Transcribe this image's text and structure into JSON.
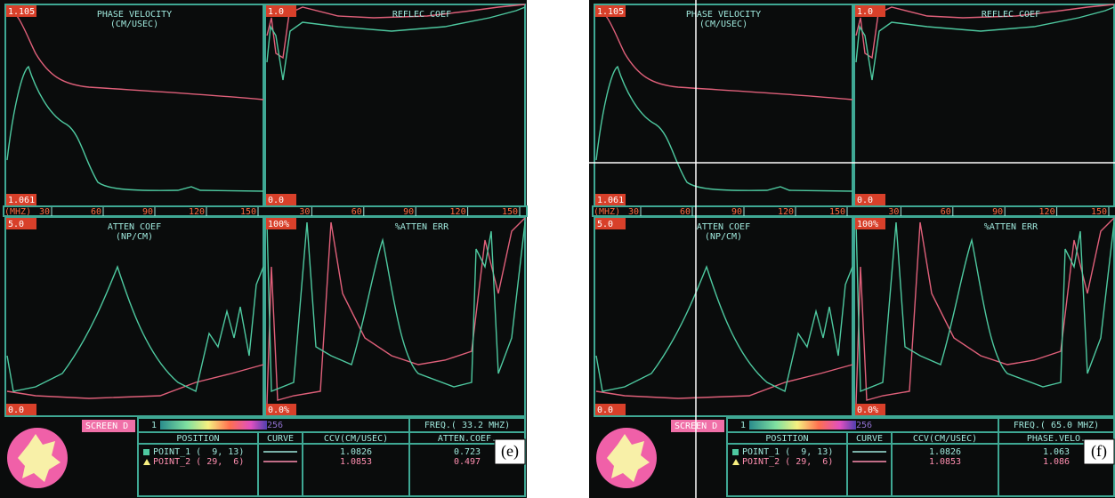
{
  "panels": [
    {
      "label": "(e)",
      "plots": [
        {
          "title": "PHASE VELOCITY",
          "unit": "(CM/USEC)",
          "max": "1.105",
          "min": "1.061"
        },
        {
          "title": "REFLEC COEF",
          "max": "1.0",
          "min": "0.0"
        },
        {
          "title": "ATTEN COEF",
          "unit": "(NP/CM)",
          "max": "5.0",
          "min": "0.0"
        },
        {
          "title": "%ATTEN ERR",
          "max": "100%",
          "min": "0.0%"
        }
      ],
      "x_unit": "(MHZ)",
      "x_ticks": [
        "30",
        "60",
        "90",
        "120",
        "150"
      ],
      "screen": "SCREEN D",
      "scale_min": "1",
      "scale_max": "256",
      "freq": "FREQ.( 33.2 MHZ)",
      "table": {
        "headers": [
          "POSITION",
          "CURVE",
          "CCV(CM/USEC)",
          "ATTEN.COEF."
        ],
        "rows": [
          [
            "POINT_1 (  9, 13)",
            "1.0826",
            "0.723"
          ],
          [
            "POINT_2 ( 29,  6)",
            "1.0853",
            "0.497"
          ]
        ]
      }
    },
    {
      "label": "(f)",
      "plots": [
        {
          "title": "PHASE VELOCITY",
          "unit": "(CM/USEC)",
          "max": "1.105",
          "min": "1.061"
        },
        {
          "title": "REFLEC COEF",
          "max": "1.0",
          "min": "0.0"
        },
        {
          "title": "ATTEN COEF",
          "unit": "(NP/CM)",
          "max": "5.0",
          "min": "0.0"
        },
        {
          "title": "%ATTEN ERR",
          "max": "100%",
          "min": "0.0%"
        }
      ],
      "x_unit": "(MHZ)",
      "x_ticks": [
        "30",
        "60",
        "90",
        "120",
        "150"
      ],
      "screen": "SCREEN D",
      "scale_min": "1",
      "scale_max": "256",
      "freq": "FREQ.( 65.0 MHZ)",
      "table": {
        "headers": [
          "POSITION",
          "CURVE",
          "CCV(CM/USEC)",
          "PHASE.VELO."
        ],
        "rows": [
          [
            "POINT_1 (  9, 13)",
            "1.0826",
            "1.063"
          ],
          [
            "POINT_2 ( 29,  6)",
            "1.0853",
            "1.086"
          ]
        ]
      }
    }
  ]
}
